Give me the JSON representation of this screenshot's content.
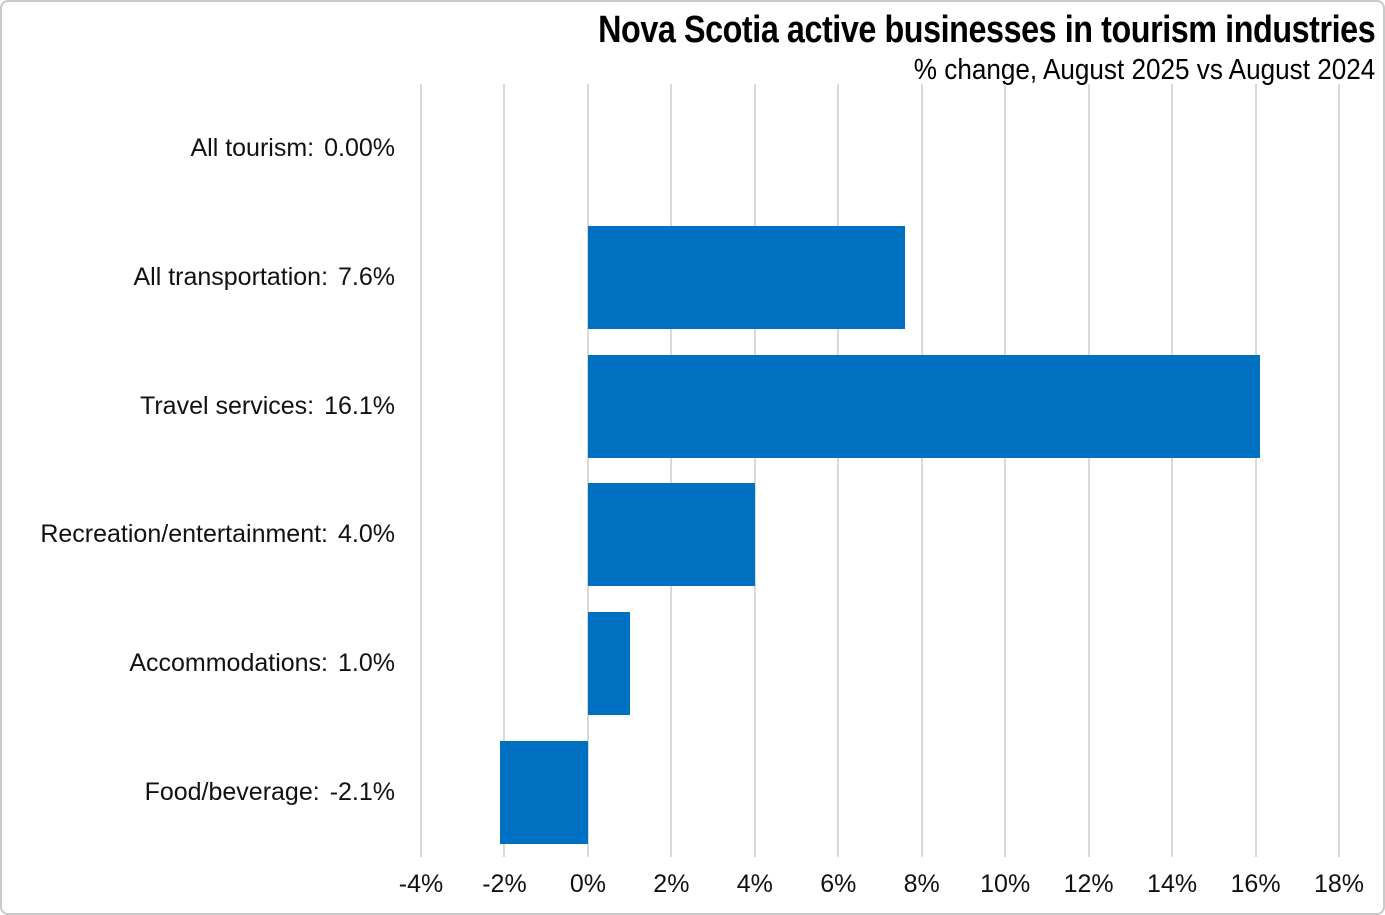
{
  "chart_data": {
    "type": "bar",
    "orientation": "horizontal",
    "title": "Nova Scotia active businesses in tourism industries",
    "subtitle": "% change, August 2025 vs August 2024",
    "categories": [
      "All tourism",
      "All transportation",
      "Travel services",
      "Recreation/entertainment",
      "Accommodations",
      "Food/beverage"
    ],
    "values": [
      0.0,
      7.6,
      16.1,
      4.0,
      1.0,
      -2.1
    ],
    "value_labels": [
      "0.00%",
      "7.6%",
      "16.1%",
      "4.0%",
      "1.0%",
      "-2.1%"
    ],
    "xlim": [
      -4,
      18
    ],
    "xticks": [
      -4,
      -2,
      0,
      2,
      4,
      6,
      8,
      10,
      12,
      14,
      16,
      18
    ],
    "xtick_labels": [
      "-4%",
      "-2%",
      "0%",
      "2%",
      "4%",
      "6%",
      "8%",
      "10%",
      "12%",
      "14%",
      "16%",
      "18%"
    ],
    "legend": "none",
    "grid": "vertical",
    "colors": {
      "bar": "#0070C0",
      "gridline": "#D9D9D9",
      "text": "#000000",
      "border": "#C9C9C9",
      "background": "#FFFFFF"
    }
  }
}
